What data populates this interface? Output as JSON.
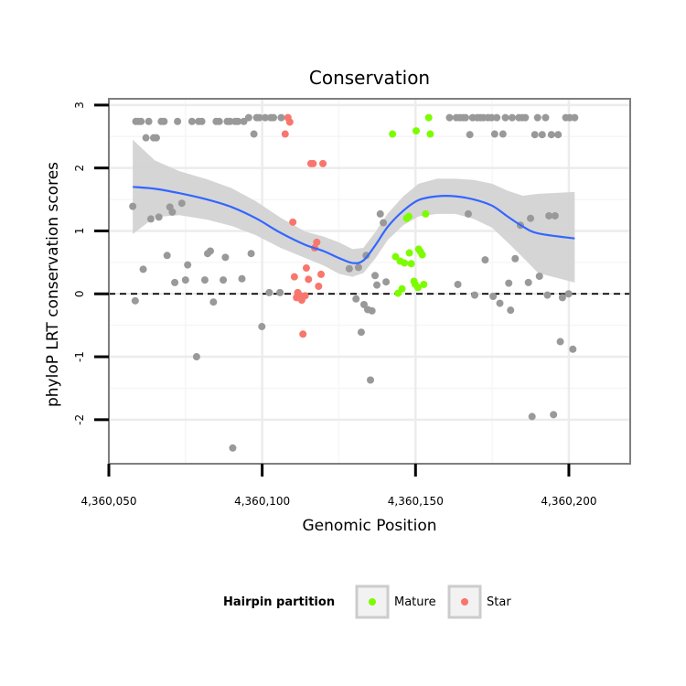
{
  "chart_data": {
    "type": "scatter",
    "title": "Conservation",
    "xlabel": "Genomic Position",
    "ylabel": "phyloP LRT conservation scores",
    "xlim": [
      4360050,
      4360220
    ],
    "ylim": [
      -2.7,
      3.1
    ],
    "x_ticks": [
      4360050,
      4360100,
      4360150,
      4360200
    ],
    "x_tick_labels": [
      "4,360,050",
      "4,360,100",
      "4,360,150",
      "4,360,200"
    ],
    "y_ticks": [
      -2,
      -1,
      0,
      1,
      2,
      3
    ],
    "y_tick_labels": [
      "-2",
      "-1",
      "0",
      "1",
      "2",
      "3"
    ],
    "grid": true,
    "reference_line": {
      "y": 0,
      "style": "dashed"
    },
    "colors": {
      "Other": "#999999",
      "Mature": "#7CFC00",
      "Star": "#F8766D",
      "smooth": "#3366FF",
      "ribbon": "#D3D3D3"
    },
    "legend": {
      "title": "Hairpin partition",
      "position": "bottom",
      "entries": [
        {
          "label": "Mature",
          "color": "#7CFC00"
        },
        {
          "label": "Star",
          "color": "#F8766D"
        }
      ]
    },
    "series": [
      {
        "name": "Other",
        "points": [
          [
            4360057.8,
            1.39
          ],
          [
            4360058.6,
            -0.11
          ],
          [
            4360058.8,
            2.74
          ],
          [
            4360059.6,
            2.74
          ],
          [
            4360060.5,
            2.74
          ],
          [
            4360061.2,
            0.39
          ],
          [
            4360062.1,
            2.48
          ],
          [
            4360063,
            2.74
          ],
          [
            4360063.7,
            1.19
          ],
          [
            4360064.6,
            2.48
          ],
          [
            4360065.5,
            2.48
          ],
          [
            4360066.3,
            1.22
          ],
          [
            4360067.1,
            2.74
          ],
          [
            4360068,
            2.74
          ],
          [
            4360069,
            0.61
          ],
          [
            4360069.9,
            1.38
          ],
          [
            4360070.7,
            1.3
          ],
          [
            4360071.5,
            0.18
          ],
          [
            4360072.4,
            2.74
          ],
          [
            4360073.8,
            1.44
          ],
          [
            4360075,
            0.22
          ],
          [
            4360075.7,
            0.46
          ],
          [
            4360077.1,
            2.74
          ],
          [
            4360078.6,
            -1.0
          ],
          [
            4360079.3,
            2.74
          ],
          [
            4360080.3,
            2.74
          ],
          [
            4360081.3,
            0.22
          ],
          [
            4360082.2,
            0.64
          ],
          [
            4360083.1,
            0.68
          ],
          [
            4360084.1,
            -0.13
          ],
          [
            4360085,
            2.74
          ],
          [
            4360086,
            2.74
          ],
          [
            4360087.3,
            0.22
          ],
          [
            4360088,
            0.58
          ],
          [
            4360088.6,
            2.74
          ],
          [
            4360089.5,
            2.74
          ],
          [
            4360090.4,
            -2.45
          ],
          [
            4360091.2,
            2.74
          ],
          [
            4360092.1,
            2.74
          ],
          [
            4360093.4,
            0.24
          ],
          [
            4360094,
            2.74
          ],
          [
            4360095.6,
            2.8
          ],
          [
            4360096.4,
            0.64
          ],
          [
            4360097.3,
            2.54
          ],
          [
            4360098.2,
            2.8
          ],
          [
            4360099.1,
            2.8
          ],
          [
            4360099.9,
            -0.52
          ],
          [
            4360101,
            2.8
          ],
          [
            4360102.3,
            0.02
          ],
          [
            4360102.8,
            2.8
          ],
          [
            4360103.7,
            2.8
          ],
          [
            4360105.8,
            0.02
          ],
          [
            4360106.2,
            2.8
          ],
          [
            4360128.4,
            0.4
          ],
          [
            4360130.6,
            -0.08
          ],
          [
            4360131.4,
            0.42
          ],
          [
            4360132.3,
            -0.61
          ],
          [
            4360133.2,
            -0.17
          ],
          [
            4360133.9,
            0.61
          ],
          [
            4360134.4,
            -0.25
          ],
          [
            4360135.3,
            -1.37
          ],
          [
            4360135.8,
            -0.27
          ],
          [
            4360136.8,
            0.29
          ],
          [
            4360137.4,
            0.14
          ],
          [
            4360138.5,
            1.27
          ],
          [
            4360139.5,
            1.13
          ],
          [
            4360140.4,
            0.19
          ],
          [
            4360161.1,
            2.8
          ],
          [
            4360163.3,
            2.8
          ],
          [
            4360163.8,
            0.15
          ],
          [
            4360164.5,
            2.8
          ],
          [
            4360165.5,
            2.8
          ],
          [
            4360166.3,
            2.8
          ],
          [
            4360167.2,
            1.27
          ],
          [
            4360167.7,
            2.53
          ],
          [
            4360168.6,
            2.8
          ],
          [
            4360169.3,
            -0.02
          ],
          [
            4360170.1,
            2.8
          ],
          [
            4360171.1,
            2.8
          ],
          [
            4360172.1,
            2.8
          ],
          [
            4360172.7,
            0.54
          ],
          [
            4360173.6,
            2.8
          ],
          [
            4360174.8,
            2.8
          ],
          [
            4360175.3,
            -0.04
          ],
          [
            4360175.8,
            2.54
          ],
          [
            4360176.5,
            2.8
          ],
          [
            4360177.5,
            -0.15
          ],
          [
            4360178.5,
            2.54
          ],
          [
            4360179.3,
            2.8
          ],
          [
            4360180.4,
            0.17
          ],
          [
            4360181,
            -0.26
          ],
          [
            4360181.5,
            2.8
          ],
          [
            4360182.5,
            0.56
          ],
          [
            4360183.7,
            2.8
          ],
          [
            4360184.2,
            1.09
          ],
          [
            4360184.8,
            2.8
          ],
          [
            4360185.8,
            2.8
          ],
          [
            4360186.8,
            0.18
          ],
          [
            4360187.5,
            1.2
          ],
          [
            4360188,
            -1.95
          ],
          [
            4360188.9,
            2.53
          ],
          [
            4360189.8,
            2.8
          ],
          [
            4360190.4,
            0.28
          ],
          [
            4360191.3,
            2.53
          ],
          [
            4360192.4,
            2.8
          ],
          [
            4360193,
            -0.02
          ],
          [
            4360193.5,
            1.24
          ],
          [
            4360194.3,
            2.53
          ],
          [
            4360195,
            -1.92
          ],
          [
            4360195.5,
            1.24
          ],
          [
            4360196.5,
            2.53
          ],
          [
            4360197.2,
            -0.76
          ],
          [
            4360197.9,
            -0.06
          ],
          [
            4360199,
            2.8
          ],
          [
            4360199.9,
            0.0
          ],
          [
            4360200.3,
            2.8
          ],
          [
            4360201.3,
            -0.88
          ],
          [
            4360201.9,
            2.8
          ]
        ]
      },
      {
        "name": "Mature",
        "points": [
          [
            4360142.5,
            2.54
          ],
          [
            4360143.5,
            0.59
          ],
          [
            4360144.3,
            0.01
          ],
          [
            4360145,
            0.52
          ],
          [
            4360145.6,
            0.08
          ],
          [
            4360146.4,
            0.49
          ],
          [
            4360147.1,
            1.2
          ],
          [
            4360147.8,
            1.23
          ],
          [
            4360148,
            0.65
          ],
          [
            4360148.6,
            0.48
          ],
          [
            4360149.5,
            0.2
          ],
          [
            4360149.9,
            0.15
          ],
          [
            4360150.2,
            2.59
          ],
          [
            4360150.8,
            0.1
          ],
          [
            4360151,
            0.71
          ],
          [
            4360151.6,
            0.67
          ],
          [
            4360152.2,
            0.62
          ],
          [
            4360152.7,
            0.15
          ],
          [
            4360153.3,
            1.27
          ],
          [
            4360154.3,
            2.8
          ],
          [
            4360154.8,
            2.54
          ]
        ]
      },
      {
        "name": "Star",
        "points": [
          [
            4360107.5,
            2.54
          ],
          [
            4360108.4,
            2.8
          ],
          [
            4360109,
            2.73
          ],
          [
            4360110,
            1.14
          ],
          [
            4360110.5,
            0.27
          ],
          [
            4360111.2,
            -0.06
          ],
          [
            4360111.6,
            0.02
          ],
          [
            4360112.2,
            -0.02
          ],
          [
            4360112.9,
            -0.1
          ],
          [
            4360113.3,
            -0.64
          ],
          [
            4360114,
            -0.03
          ],
          [
            4360114.4,
            0.41
          ],
          [
            4360115.1,
            0.23
          ],
          [
            4360115.9,
            2.07
          ],
          [
            4360116.6,
            2.07
          ],
          [
            4360117.1,
            0.73
          ],
          [
            4360117.8,
            0.82
          ],
          [
            4360118.4,
            0.12
          ],
          [
            4360119.2,
            0.31
          ],
          [
            4360119.8,
            2.07
          ]
        ]
      }
    ],
    "smooth": {
      "method": "loess",
      "points": [
        {
          "x": 4360057.8,
          "y": 1.7,
          "lo": 0.95,
          "hi": 2.45
        },
        {
          "x": 4360065,
          "y": 1.67,
          "lo": 1.22,
          "hi": 2.12
        },
        {
          "x": 4360073,
          "y": 1.6,
          "lo": 1.25,
          "hi": 1.95
        },
        {
          "x": 4360082,
          "y": 1.5,
          "lo": 1.18,
          "hi": 1.82
        },
        {
          "x": 4360090,
          "y": 1.38,
          "lo": 1.08,
          "hi": 1.68
        },
        {
          "x": 4360098,
          "y": 1.2,
          "lo": 0.93,
          "hi": 1.47
        },
        {
          "x": 4360106,
          "y": 0.97,
          "lo": 0.73,
          "hi": 1.21
        },
        {
          "x": 4360114,
          "y": 0.78,
          "lo": 0.57,
          "hi": 0.99
        },
        {
          "x": 4360120,
          "y": 0.68,
          "lo": 0.45,
          "hi": 0.91
        },
        {
          "x": 4360125,
          "y": 0.57,
          "lo": 0.32,
          "hi": 0.82
        },
        {
          "x": 4360129.5,
          "y": 0.49,
          "lo": 0.27,
          "hi": 0.71
        },
        {
          "x": 4360133,
          "y": 0.53,
          "lo": 0.33,
          "hi": 0.73
        },
        {
          "x": 4360137,
          "y": 0.78,
          "lo": 0.57,
          "hi": 0.99
        },
        {
          "x": 4360141,
          "y": 1.07,
          "lo": 0.86,
          "hi": 1.28
        },
        {
          "x": 4360146,
          "y": 1.32,
          "lo": 1.09,
          "hi": 1.55
        },
        {
          "x": 4360151,
          "y": 1.49,
          "lo": 1.23,
          "hi": 1.75
        },
        {
          "x": 4360157,
          "y": 1.55,
          "lo": 1.27,
          "hi": 1.83
        },
        {
          "x": 4360163,
          "y": 1.55,
          "lo": 1.27,
          "hi": 1.83
        },
        {
          "x": 4360169,
          "y": 1.5,
          "lo": 1.19,
          "hi": 1.81
        },
        {
          "x": 4360175,
          "y": 1.4,
          "lo": 1.05,
          "hi": 1.75
        },
        {
          "x": 4360180,
          "y": 1.23,
          "lo": 0.82,
          "hi": 1.64
        },
        {
          "x": 4360185,
          "y": 1.07,
          "lo": 0.58,
          "hi": 1.56
        },
        {
          "x": 4360190,
          "y": 0.96,
          "lo": 0.33,
          "hi": 1.59
        },
        {
          "x": 4360201.9,
          "y": 0.88,
          "lo": 0.18,
          "hi": 1.62
        }
      ]
    }
  }
}
